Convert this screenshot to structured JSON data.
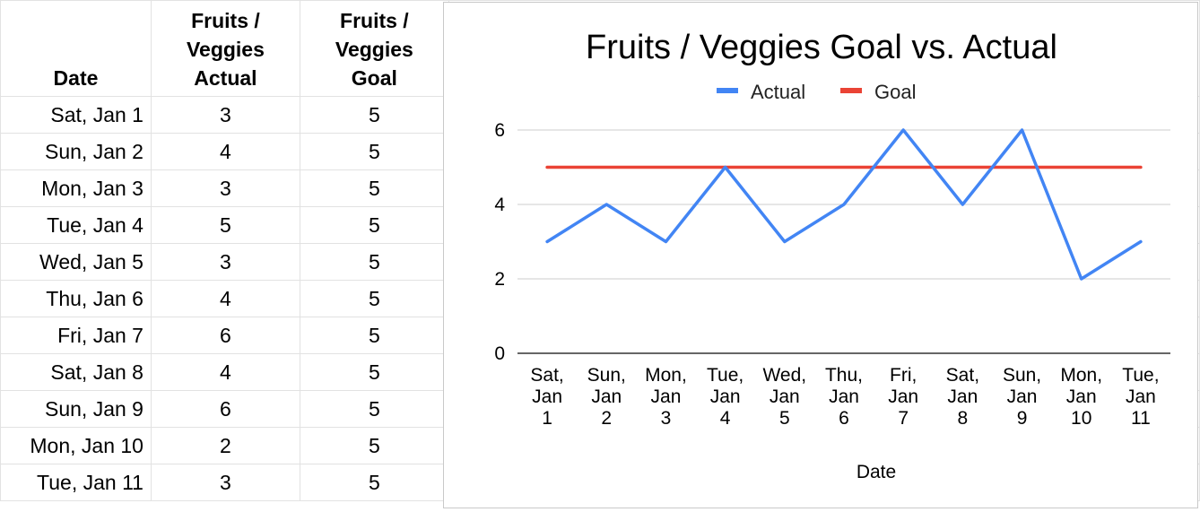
{
  "table": {
    "headers": {
      "date": "Date",
      "actual_lines": [
        "Fruits /",
        "Veggies",
        "Actual"
      ],
      "goal_lines": [
        "Fruits /",
        "Veggies",
        "Goal"
      ]
    },
    "rows": [
      {
        "date": "Sat, Jan 1",
        "actual": "3",
        "goal": "5"
      },
      {
        "date": "Sun, Jan 2",
        "actual": "4",
        "goal": "5"
      },
      {
        "date": "Mon, Jan 3",
        "actual": "3",
        "goal": "5"
      },
      {
        "date": "Tue, Jan 4",
        "actual": "5",
        "goal": "5"
      },
      {
        "date": "Wed, Jan 5",
        "actual": "3",
        "goal": "5"
      },
      {
        "date": "Thu, Jan 6",
        "actual": "4",
        "goal": "5"
      },
      {
        "date": "Fri, Jan 7",
        "actual": "6",
        "goal": "5"
      },
      {
        "date": "Sat, Jan 8",
        "actual": "4",
        "goal": "5"
      },
      {
        "date": "Sun, Jan 9",
        "actual": "6",
        "goal": "5"
      },
      {
        "date": "Mon, Jan 10",
        "actual": "2",
        "goal": "5"
      },
      {
        "date": "Tue, Jan 11",
        "actual": "3",
        "goal": "5"
      }
    ]
  },
  "chart_data": {
    "type": "line",
    "title": "Fruits / Veggies Goal vs. Actual",
    "xlabel": "Date",
    "ylabel": "",
    "categories": [
      [
        "Sat,",
        "Jan",
        "1"
      ],
      [
        "Sun,",
        "Jan",
        "2"
      ],
      [
        "Mon,",
        "Jan",
        "3"
      ],
      [
        "Tue,",
        "Jan",
        "4"
      ],
      [
        "Wed,",
        "Jan",
        "5"
      ],
      [
        "Thu,",
        "Jan",
        "6"
      ],
      [
        "Fri,",
        "Jan",
        "7"
      ],
      [
        "Sat,",
        "Jan",
        "8"
      ],
      [
        "Sun,",
        "Jan",
        "9"
      ],
      [
        "Mon,",
        "Jan",
        "10"
      ],
      [
        "Tue,",
        "Jan",
        "11"
      ]
    ],
    "series": [
      {
        "name": "Actual",
        "color": "#4285f4",
        "values": [
          3,
          4,
          3,
          5,
          3,
          4,
          6,
          4,
          6,
          2,
          3
        ]
      },
      {
        "name": "Goal",
        "color": "#ea4335",
        "values": [
          5,
          5,
          5,
          5,
          5,
          5,
          5,
          5,
          5,
          5,
          5
        ]
      }
    ],
    "yticks": [
      "0",
      "2",
      "4",
      "6"
    ],
    "ylim": [
      0,
      6
    ],
    "grid": true,
    "legend_position": "top"
  }
}
